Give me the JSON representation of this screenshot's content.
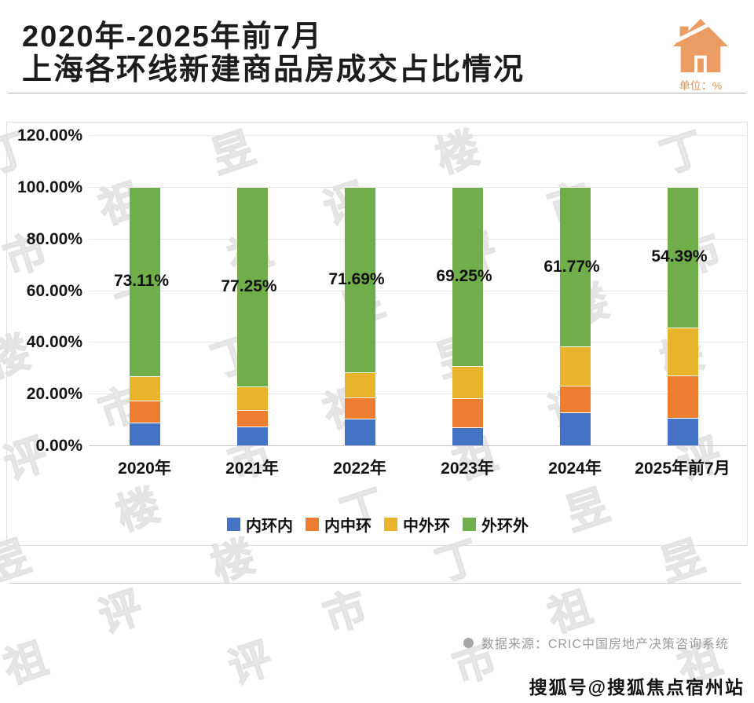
{
  "header": {
    "title_line1": "2020年-2025年前7月",
    "title_line2": "上海各环线新建商品房成交占比情况",
    "unit_label": "单位：%"
  },
  "watermark": {
    "text": "丁祖昱评楼市"
  },
  "chart_data": {
    "type": "bar",
    "subtype": "stacked-percent",
    "categories": [
      "2020年",
      "2021年",
      "2022年",
      "2023年",
      "2024年",
      "2025年前7月"
    ],
    "series": [
      {
        "name": "内环内",
        "color": "#4472C4",
        "values": [
          8.7,
          7.2,
          10.2,
          6.9,
          12.7,
          10.64
        ]
      },
      {
        "name": "内中环",
        "color": "#ED7D31",
        "values": [
          8.6,
          6.6,
          8.3,
          11.3,
          10.4,
          16.5
        ]
      },
      {
        "name": "中外环",
        "color": "#E9B32C",
        "values": [
          9.59,
          8.95,
          9.81,
          12.55,
          15.13,
          18.47
        ]
      },
      {
        "name": "外环外",
        "color": "#6FAE4A",
        "values": [
          73.11,
          77.25,
          71.69,
          69.25,
          61.77,
          54.39
        ]
      }
    ],
    "data_labels": [
      "73.11%",
      "77.25%",
      "71.69%",
      "69.25%",
      "61.77%",
      "54.39%"
    ],
    "data_labels_series": "外环外",
    "y_ticks": [
      "0.00%",
      "20.00%",
      "40.00%",
      "60.00%",
      "80.00%",
      "100.00%",
      "120.00%"
    ],
    "y_tick_values": [
      0,
      20,
      40,
      60,
      80,
      100,
      120
    ],
    "ylim": [
      0,
      120
    ],
    "grid": true,
    "legend_position": "bottom"
  },
  "footer": {
    "source": "数据来源：CRIC中国房地产决策咨询系统",
    "sohu_badge": "搜狐号@搜狐焦点宿州站"
  }
}
